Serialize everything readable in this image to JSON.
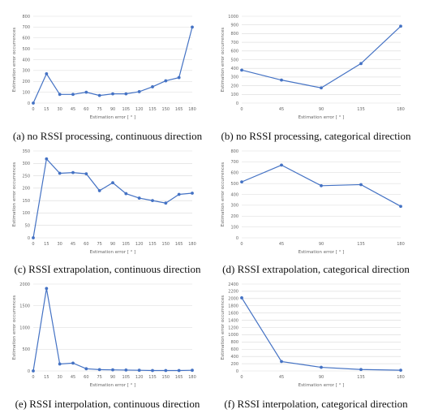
{
  "chart_data": [
    {
      "id": "a",
      "type": "line",
      "caption": "(a) no RSSI processing, continuous direction",
      "xlabel": "Estimation error [ ° ]",
      "ylabel": "Estimation error occurrences",
      "x": [
        0,
        15,
        30,
        45,
        60,
        75,
        90,
        105,
        120,
        135,
        150,
        165,
        180
      ],
      "values": [
        0,
        270,
        80,
        80,
        100,
        70,
        85,
        85,
        105,
        150,
        205,
        235,
        700
      ],
      "ylim": [
        0,
        800
      ],
      "yticks": [
        0,
        100,
        200,
        300,
        400,
        500,
        600,
        700,
        800
      ],
      "grid": true
    },
    {
      "id": "b",
      "type": "line",
      "caption": "(b) no RSSI processing, categorical direction",
      "xlabel": "Estimation error [ ° ]",
      "ylabel": "Estimation error occurrences",
      "x": [
        0,
        45,
        90,
        135,
        180
      ],
      "values": [
        380,
        265,
        175,
        455,
        885
      ],
      "ylim": [
        0,
        1000
      ],
      "yticks": [
        0,
        100,
        200,
        300,
        400,
        500,
        600,
        700,
        800,
        900,
        1000
      ],
      "grid": true
    },
    {
      "id": "c",
      "type": "line",
      "caption": "(c) RSSI extrapolation, continuous direction",
      "xlabel": "Estimation error [ ° ]",
      "ylabel": "Estimation error occurrences",
      "x": [
        0,
        15,
        30,
        45,
        60,
        75,
        90,
        105,
        120,
        135,
        150,
        165,
        180
      ],
      "values": [
        0,
        318,
        260,
        263,
        258,
        190,
        222,
        178,
        160,
        150,
        140,
        175,
        180
      ],
      "ylim": [
        0,
        350
      ],
      "yticks": [
        0,
        50,
        100,
        150,
        200,
        250,
        300,
        350
      ],
      "grid": true
    },
    {
      "id": "d",
      "type": "line",
      "caption": "(d) RSSI extrapolation, categorical direction",
      "xlabel": "Estimation error [ ° ]",
      "ylabel": "Estimation error occurrences",
      "x": [
        0,
        45,
        90,
        135,
        180
      ],
      "values": [
        515,
        670,
        480,
        490,
        290
      ],
      "ylim": [
        0,
        800
      ],
      "yticks": [
        0,
        100,
        200,
        300,
        400,
        500,
        600,
        700,
        800
      ],
      "grid": true
    },
    {
      "id": "e",
      "type": "line",
      "caption": "(e) RSSI interpolation, continuous direction",
      "xlabel": "Estimation error [ ° ]",
      "ylabel": "Estimation error occurrences",
      "x": [
        0,
        15,
        30,
        45,
        60,
        75,
        90,
        105,
        120,
        135,
        150,
        165,
        180
      ],
      "values": [
        0,
        1900,
        160,
        180,
        50,
        30,
        25,
        20,
        15,
        10,
        10,
        10,
        15
      ],
      "ylim": [
        0,
        2000
      ],
      "yticks": [
        0,
        500,
        1000,
        1500,
        2000
      ],
      "grid": true
    },
    {
      "id": "f",
      "type": "line",
      "caption": "(f) RSSI interpolation, categorical direction",
      "xlabel": "Estimation error [ ° ]",
      "ylabel": "Estimation error occurrences",
      "x": [
        0,
        45,
        90,
        135,
        180
      ],
      "values": [
        2020,
        260,
        100,
        40,
        20
      ],
      "ylim": [
        0,
        2400
      ],
      "yticks": [
        0,
        200,
        400,
        600,
        800,
        1000,
        1200,
        1400,
        1600,
        1800,
        2000,
        2200,
        2400
      ],
      "grid": true
    }
  ]
}
